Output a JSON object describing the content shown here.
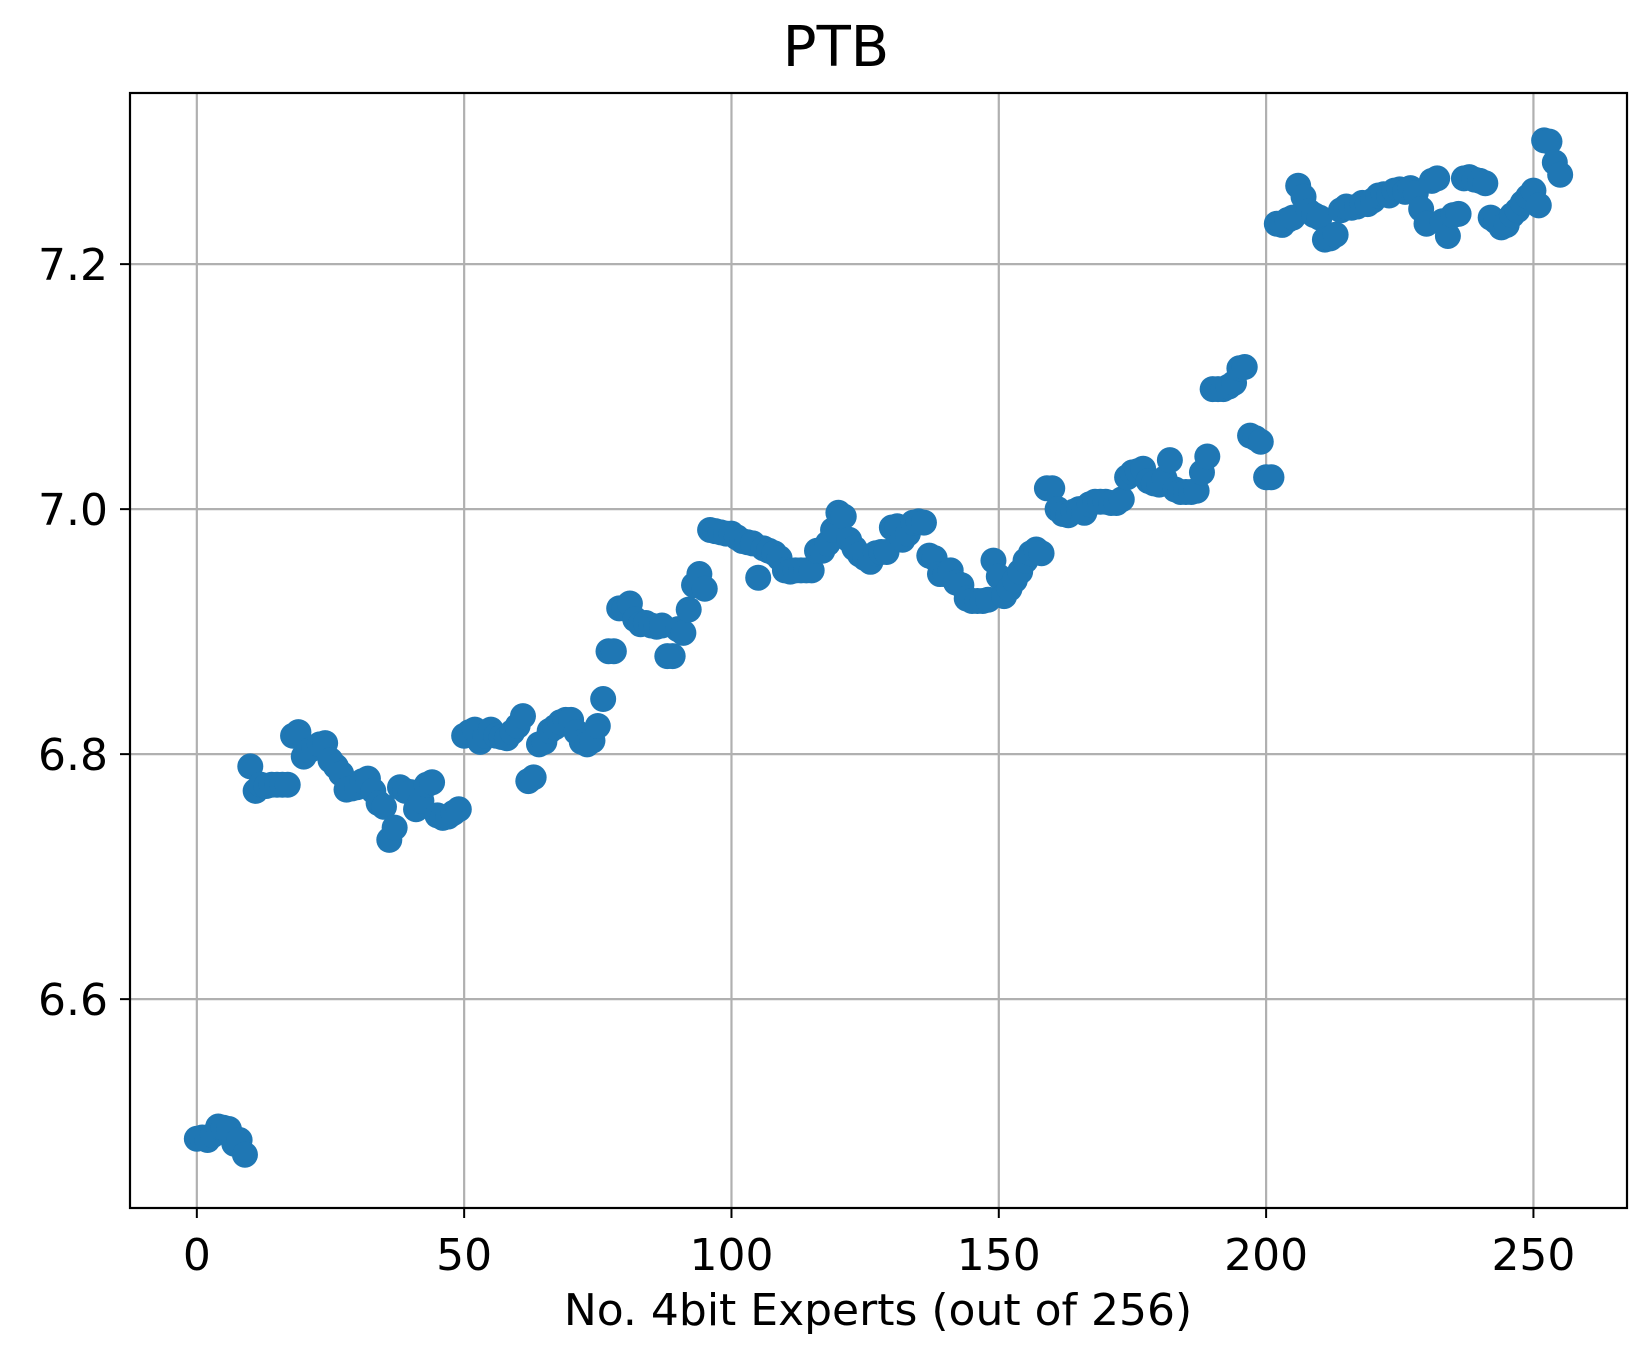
{
  "chart_data": {
    "type": "scatter",
    "title": "PTB",
    "xlabel": "No. 4bit Experts (out of 256)",
    "ylabel": "",
    "xlim": [
      -12.5,
      267.5
    ],
    "ylim": [
      6.4295,
      7.3397
    ],
    "grid": true,
    "marker_color": "#1f77b4",
    "x_ticks": [
      0,
      50,
      100,
      150,
      200,
      250
    ],
    "x_tick_labels": [
      "0",
      "50",
      "100",
      "150",
      "200",
      "250"
    ],
    "y_ticks": [
      6.6,
      6.8,
      7.0,
      7.2
    ],
    "y_tick_labels": [
      "6.6",
      "6.8",
      "7.0",
      "7.2"
    ],
    "series": [
      {
        "x": [
          0,
          1,
          2,
          3,
          4,
          5,
          6,
          7,
          8,
          9,
          10,
          11,
          12,
          13,
          14,
          15,
          16,
          17,
          18,
          19,
          20,
          21,
          22,
          23,
          24,
          25,
          26,
          27,
          28,
          29,
          30,
          31,
          32,
          33,
          34,
          35,
          36,
          37,
          38,
          39,
          40,
          41,
          42,
          43,
          44,
          45,
          46,
          47,
          48,
          49,
          50,
          51,
          52,
          53,
          54,
          55,
          56,
          57,
          58,
          59,
          60,
          61,
          62,
          63,
          64,
          65,
          66,
          67,
          68,
          69,
          70,
          71,
          72,
          73,
          74,
          75,
          76,
          77,
          78,
          79,
          80,
          81,
          82,
          83,
          84,
          85,
          86,
          87,
          88,
          89,
          90,
          91,
          92,
          93,
          94,
          95,
          96,
          97,
          98,
          99,
          100,
          101,
          102,
          103,
          104,
          105,
          106,
          107,
          108,
          109,
          110,
          111,
          112,
          113,
          114,
          115,
          116,
          117,
          118,
          119,
          120,
          121,
          122,
          123,
          124,
          125,
          126,
          127,
          128,
          129,
          130,
          131,
          132,
          133,
          134,
          135,
          136,
          137,
          138,
          139,
          140,
          141,
          142,
          143,
          144,
          145,
          146,
          147,
          148,
          149,
          150,
          151,
          152,
          153,
          154,
          155,
          156,
          157,
          158,
          159,
          160,
          161,
          162,
          163,
          164,
          165,
          166,
          167,
          168,
          169,
          170,
          171,
          172,
          173,
          174,
          175,
          176,
          177,
          178,
          179,
          180,
          181,
          182,
          183,
          184,
          185,
          186,
          187,
          188,
          189,
          190,
          191,
          192,
          193,
          194,
          195,
          196,
          197,
          198,
          199,
          200,
          201,
          202,
          203,
          204,
          205,
          206,
          207,
          208,
          209,
          210,
          211,
          212,
          213,
          214,
          215,
          216,
          217,
          218,
          219,
          220,
          221,
          222,
          223,
          224,
          225,
          226,
          227,
          228,
          229,
          230,
          231,
          232,
          233,
          234,
          235,
          236,
          237,
          238,
          239,
          240,
          241,
          242,
          243,
          244,
          245,
          246,
          247,
          248,
          249,
          250,
          251,
          252,
          253,
          254,
          255
        ],
        "y": [
          6.486,
          6.487,
          6.485,
          6.489,
          6.496,
          6.495,
          6.494,
          6.482,
          6.485,
          6.473,
          6.79,
          6.77,
          6.775,
          6.774,
          6.775,
          6.775,
          6.775,
          6.775,
          6.815,
          6.818,
          6.798,
          6.803,
          6.805,
          6.808,
          6.809,
          6.795,
          6.79,
          6.784,
          6.771,
          6.772,
          6.773,
          6.778,
          6.78,
          6.77,
          6.76,
          6.757,
          6.73,
          6.74,
          6.773,
          6.77,
          6.769,
          6.755,
          6.762,
          6.775,
          6.777,
          6.75,
          6.748,
          6.749,
          6.752,
          6.755,
          6.815,
          6.818,
          6.82,
          6.81,
          6.815,
          6.82,
          6.815,
          6.814,
          6.813,
          6.818,
          6.823,
          6.831,
          6.778,
          6.781,
          6.808,
          6.81,
          6.819,
          6.822,
          6.826,
          6.828,
          6.828,
          6.818,
          6.81,
          6.808,
          6.811,
          6.823,
          6.845,
          6.884,
          6.884,
          6.919,
          6.919,
          6.923,
          6.91,
          6.906,
          6.907,
          6.905,
          6.904,
          6.905,
          6.88,
          6.88,
          6.902,
          6.899,
          6.918,
          6.938,
          6.947,
          6.935,
          6.983,
          6.982,
          6.981,
          6.98,
          6.98,
          6.977,
          6.974,
          6.973,
          6.972,
          6.944,
          6.968,
          6.966,
          6.964,
          6.96,
          6.95,
          6.949,
          6.95,
          6.95,
          6.95,
          6.95,
          6.966,
          6.966,
          6.972,
          6.983,
          6.997,
          6.994,
          6.975,
          6.968,
          6.963,
          6.96,
          6.957,
          6.964,
          6.965,
          6.965,
          6.985,
          6.986,
          6.975,
          6.98,
          6.989,
          6.99,
          6.989,
          6.962,
          6.96,
          6.947,
          6.947,
          6.95,
          6.94,
          6.938,
          6.927,
          6.925,
          6.925,
          6.925,
          6.926,
          6.958,
          6.945,
          6.929,
          6.935,
          6.942,
          6.949,
          6.958,
          6.964,
          6.967,
          6.964,
          7.017,
          7.017,
          7.0,
          6.996,
          6.995,
          6.998,
          7.0,
          6.997,
          7.004,
          7.006,
          7.006,
          7.006,
          7.005,
          7.005,
          7.008,
          7.026,
          7.03,
          7.031,
          7.033,
          7.023,
          7.021,
          7.02,
          7.025,
          7.04,
          7.016,
          7.014,
          7.014,
          7.014,
          7.015,
          7.03,
          7.043,
          7.098,
          7.098,
          7.098,
          7.1,
          7.103,
          7.115,
          7.116,
          7.06,
          7.058,
          7.055,
          7.026,
          7.026,
          7.233,
          7.232,
          7.236,
          7.238,
          7.264,
          7.255,
          7.243,
          7.24,
          7.238,
          7.22,
          7.221,
          7.224,
          7.244,
          7.247,
          7.246,
          7.247,
          7.25,
          7.249,
          7.252,
          7.256,
          7.257,
          7.256,
          7.26,
          7.261,
          7.259,
          7.262,
          7.258,
          7.245,
          7.233,
          7.268,
          7.27,
          7.235,
          7.223,
          7.24,
          7.241,
          7.27,
          7.271,
          7.269,
          7.268,
          7.266,
          7.238,
          7.235,
          7.23,
          7.232,
          7.24,
          7.244,
          7.25,
          7.255,
          7.26,
          7.248,
          7.301,
          7.3,
          7.283,
          7.273
        ]
      }
    ]
  }
}
